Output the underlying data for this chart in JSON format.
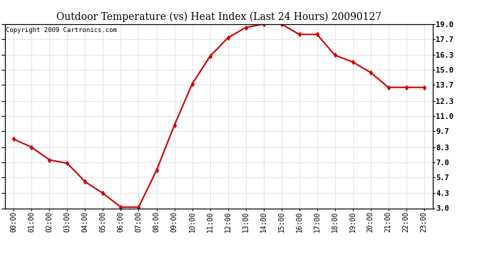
{
  "title": "Outdoor Temperature (vs) Heat Index (Last 24 Hours) 20090127",
  "copyright": "Copyright 2009 Cartronics.com",
  "x_labels": [
    "00:00",
    "01:00",
    "02:00",
    "03:00",
    "04:00",
    "05:00",
    "06:00",
    "07:00",
    "08:00",
    "09:00",
    "10:00",
    "11:00",
    "12:00",
    "13:00",
    "14:00",
    "15:00",
    "16:00",
    "17:00",
    "18:00",
    "19:00",
    "20:00",
    "21:00",
    "22:00",
    "23:00"
  ],
  "y_values": [
    9.0,
    8.3,
    7.2,
    6.9,
    5.3,
    4.3,
    3.1,
    3.1,
    6.3,
    10.2,
    13.8,
    16.2,
    17.8,
    18.7,
    19.0,
    19.0,
    18.1,
    18.1,
    16.3,
    15.7,
    14.8,
    13.5,
    13.5,
    13.5
  ],
  "y_ticks": [
    3.0,
    4.3,
    5.7,
    7.0,
    8.3,
    9.7,
    11.0,
    12.3,
    13.7,
    15.0,
    16.3,
    17.7,
    19.0
  ],
  "y_tick_labels": [
    "3.0",
    "4.3",
    "5.7",
    "7.0",
    "8.3",
    "9.7",
    "11.0",
    "12.3",
    "13.7",
    "15.0",
    "16.3",
    "17.7",
    "19.0"
  ],
  "ylim": [
    3.0,
    19.0
  ],
  "line_color": "#cc0000",
  "marker": "d",
  "marker_color": "#cc0000",
  "marker_size": 3,
  "background_color": "#ffffff",
  "grid_color": "#bbbbbb",
  "title_fontsize": 10,
  "copyright_fontsize": 6.5,
  "tick_fontsize": 7,
  "ytick_fontsize": 7.5
}
